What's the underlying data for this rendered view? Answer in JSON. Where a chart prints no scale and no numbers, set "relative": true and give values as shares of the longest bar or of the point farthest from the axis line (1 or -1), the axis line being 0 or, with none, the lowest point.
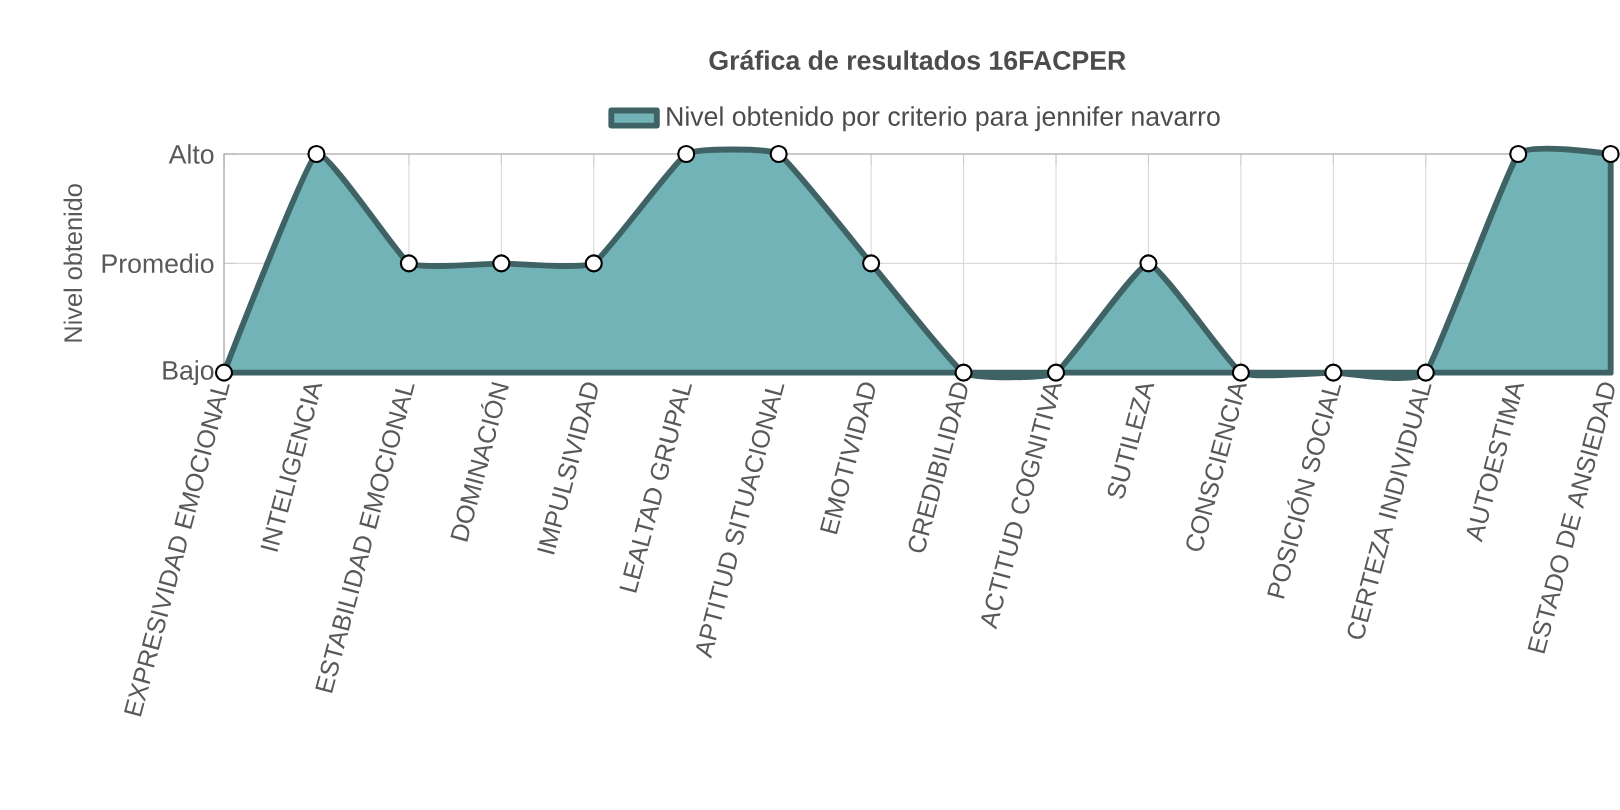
{
  "chart_data": {
    "type": "area",
    "title": "Gráfica de resultados 16FACPER",
    "ylabel": "Nivel obtenido",
    "categories": [
      "EXPRESIVIDAD EMOCIONAL",
      "INTELIGENCIA",
      "ESTABILIDAD EMOCIONAL",
      "DOMINACIÓN",
      "IMPULSIVIDAD",
      "LEALTAD GRUPAL",
      "APTITUD SITUACIONAL",
      "EMOTIVIDAD",
      "CREDIBILIDAD",
      "ACTITUD COGNITIVA",
      "SUTILEZA",
      "CONSCIENCIA",
      "POSICIÓN SOCIAL",
      "CERTEZA INDIVIDUAL",
      "AUTOESTIMA",
      "ESTADO DE ANSIEDAD"
    ],
    "series": [
      {
        "name": "Nivel obtenido por criterio para jennifer navarro",
        "color": "#72b3b7",
        "values": [
          0,
          1,
          0.5,
          0.5,
          0.5,
          1,
          1,
          0.5,
          0,
          0,
          0.5,
          0,
          0,
          0,
          1,
          1
        ]
      }
    ],
    "relative": true,
    "annotations": [
      "Bajo",
      "Promedio",
      "Alto"
    ],
    "grid": true,
    "legend": "top",
    "marker": "circle",
    "line_style": "solid"
  }
}
